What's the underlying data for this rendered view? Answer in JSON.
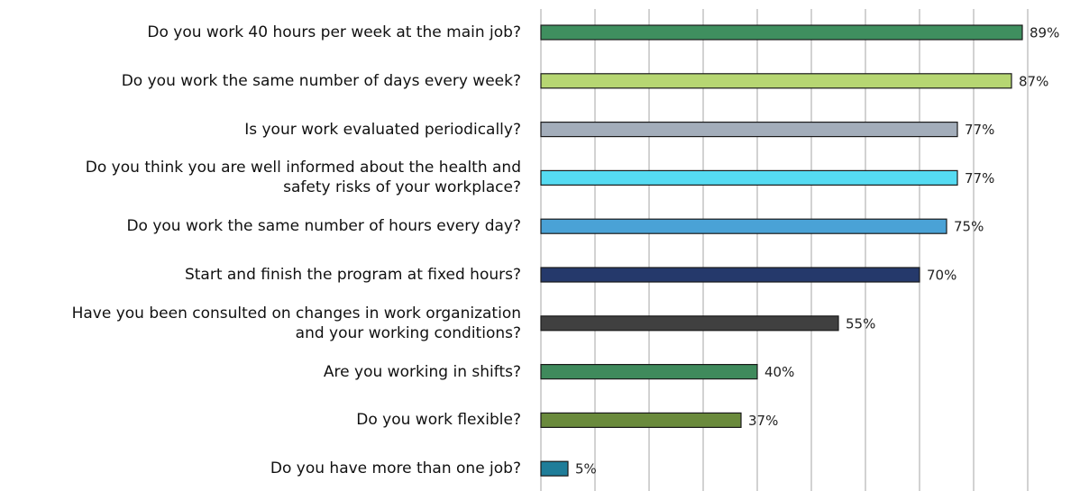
{
  "chart_data": {
    "type": "bar",
    "orientation": "horizontal",
    "categories": [
      "Do you work 40 hours per week at the main job?",
      "Do you work the same number of days every week?",
      "Is your work evaluated periodically?",
      "Do you think you are well informed about the health and\nsafety risks of your workplace?",
      "Do you work the same number of hours every day?",
      "Start and finish the program at fixed hours?",
      "Have you been consulted on changes in work organization\nand your working conditions?",
      "Are you working in shifts?",
      "Do you work flexible?",
      "Do you have more than one job?"
    ],
    "values": [
      89,
      87,
      77,
      77,
      75,
      70,
      55,
      40,
      37,
      5
    ],
    "value_labels": [
      "89%",
      "87%",
      "77%",
      "77%",
      "75%",
      "70%",
      "55%",
      "40%",
      "37%",
      "5%"
    ],
    "colors": [
      "#3f8f5f",
      "#b6d672",
      "#a3adba",
      "#55dbf2",
      "#4aa2d6",
      "#25396b",
      "#404040",
      "#3f8a5c",
      "#6a8a3c",
      "#1f7d99"
    ],
    "xlim": [
      0,
      90
    ],
    "xticks": [
      0,
      10,
      20,
      30,
      40,
      50,
      60,
      70,
      80,
      90
    ],
    "grid": true
  }
}
